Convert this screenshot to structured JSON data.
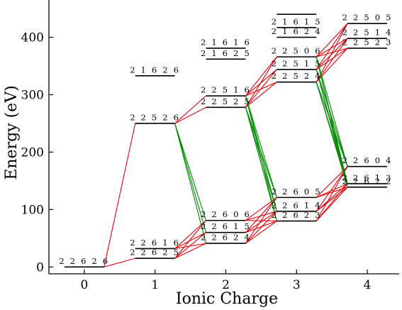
{
  "chart_data": {
    "type": "line",
    "xlabel": "Ionic Charge",
    "ylabel": "Energy (eV)",
    "xlim": [
      -0.5,
      4.45
    ],
    "ylim": [
      -12,
      465
    ],
    "x_ticks": [
      "0",
      "1",
      "2",
      "3",
      "4"
    ],
    "y_ticks": [
      "0",
      "100",
      "200",
      "300",
      "400"
    ],
    "colors": {
      "level": "#000000",
      "red_transition": "#e8000b",
      "green_transition": "#008a00"
    },
    "levels": [
      {
        "charge": 0,
        "energy": 0,
        "label": "2 2 6 2 6"
      },
      {
        "charge": 1,
        "energy": 15,
        "label": "2 2 6 2 5"
      },
      {
        "charge": 1,
        "energy": 32,
        "label": "2 2 6 1 6"
      },
      {
        "charge": 1,
        "energy": 250,
        "label": "2 2 5 2 6"
      },
      {
        "charge": 1,
        "energy": 333,
        "label": "2 1 6 2 6"
      },
      {
        "charge": 2,
        "energy": 41,
        "label": "2 2 6 2 4"
      },
      {
        "charge": 2,
        "energy": 60,
        "label": "2 2 6 1 5"
      },
      {
        "charge": 2,
        "energy": 81,
        "label": "2 2 6 0 6"
      },
      {
        "charge": 2,
        "energy": 278,
        "label": "2 2 5 2 5"
      },
      {
        "charge": 2,
        "energy": 298,
        "label": "2 2 5 1 6"
      },
      {
        "charge": 2,
        "energy": 362,
        "label": "2 1 6 2 5"
      },
      {
        "charge": 2,
        "energy": 381,
        "label": "2 1 6 1 6"
      },
      {
        "charge": 3,
        "energy": 80,
        "label": "2 2 6 2 3"
      },
      {
        "charge": 3,
        "energy": 97,
        "label": "2 2 6 1 4"
      },
      {
        "charge": 3,
        "energy": 121,
        "label": "2 2 6 0 5"
      },
      {
        "charge": 3,
        "energy": 322,
        "label": "2 2 5 2 4"
      },
      {
        "charge": 3,
        "energy": 344,
        "label": "2 2 5 1 5"
      },
      {
        "charge": 3,
        "energy": 366,
        "label": "2 2 5 0 6"
      },
      {
        "charge": 3,
        "energy": 400,
        "label": "2 1 6 2 4"
      },
      {
        "charge": 3,
        "energy": 417,
        "label": "2 1 6 1 5"
      },
      {
        "charge": 3,
        "energy": 440,
        "label": ""
      },
      {
        "charge": 4,
        "energy": 139,
        "label": "2 2 6 2 2"
      },
      {
        "charge": 4,
        "energy": 145,
        "label": "2 2 6 1 3"
      },
      {
        "charge": 4,
        "energy": 175,
        "label": "2 2 6 0 4"
      },
      {
        "charge": 4,
        "energy": 381,
        "label": "2 2 5 2 3"
      },
      {
        "charge": 4,
        "energy": 398,
        "label": "2 2 5 1 4"
      },
      {
        "charge": 4,
        "energy": 424,
        "label": "2 2 5 0 5"
      }
    ],
    "transitions": [
      {
        "from": [
          "2 2 6 2 6"
        ],
        "to": [
          "2 2 6 2 5",
          "2 2 5 2 6"
        ],
        "color": "red"
      },
      {
        "from": [
          "2 2 6 2 5",
          "2 2 6 1 6"
        ],
        "to": [
          "2 2 6 2 4",
          "2 2 6 1 5",
          "2 2 6 0 6"
        ],
        "color": "red"
      },
      {
        "from": [
          "2 2 5 2 6"
        ],
        "to": [
          "2 2 5 2 5",
          "2 2 5 1 6"
        ],
        "color": "red"
      },
      {
        "from": [
          "2 2 5 2 6"
        ],
        "to": [
          "2 2 6 2 4",
          "2 2 6 1 5",
          "2 2 6 0 6"
        ],
        "color": "green"
      },
      {
        "from": [
          "2 2 6 2 4",
          "2 2 6 1 5",
          "2 2 6 0 6"
        ],
        "to": [
          "2 2 6 2 3",
          "2 2 6 1 4",
          "2 2 6 0 5"
        ],
        "color": "red"
      },
      {
        "from": [
          "2 2 5 2 5",
          "2 2 5 1 6"
        ],
        "to": [
          "2 2 5 2 4",
          "2 2 5 1 5",
          "2 2 5 0 6"
        ],
        "color": "red"
      },
      {
        "from": [
          "2 2 5 2 5",
          "2 2 5 1 6"
        ],
        "to": [
          "2 2 6 2 3",
          "2 2 6 1 4",
          "2 2 6 0 5"
        ],
        "color": "green"
      },
      {
        "from": [
          "2 2 6 2 3",
          "2 2 6 1 4",
          "2 2 6 0 5"
        ],
        "to": [
          "2 2 6 2 2",
          "2 2 6 1 3",
          "2 2 6 0 4"
        ],
        "color": "red"
      },
      {
        "from": [
          "2 2 5 2 4",
          "2 2 5 1 5",
          "2 2 5 0 6"
        ],
        "to": [
          "2 2 5 2 3",
          "2 2 5 1 4",
          "2 2 5 0 5"
        ],
        "color": "red"
      },
      {
        "from": [
          "2 2 5 2 4",
          "2 2 5 1 5",
          "2 2 5 0 6"
        ],
        "to": [
          "2 2 6 2 2",
          "2 2 6 1 3",
          "2 2 6 0 4"
        ],
        "color": "green"
      }
    ]
  }
}
